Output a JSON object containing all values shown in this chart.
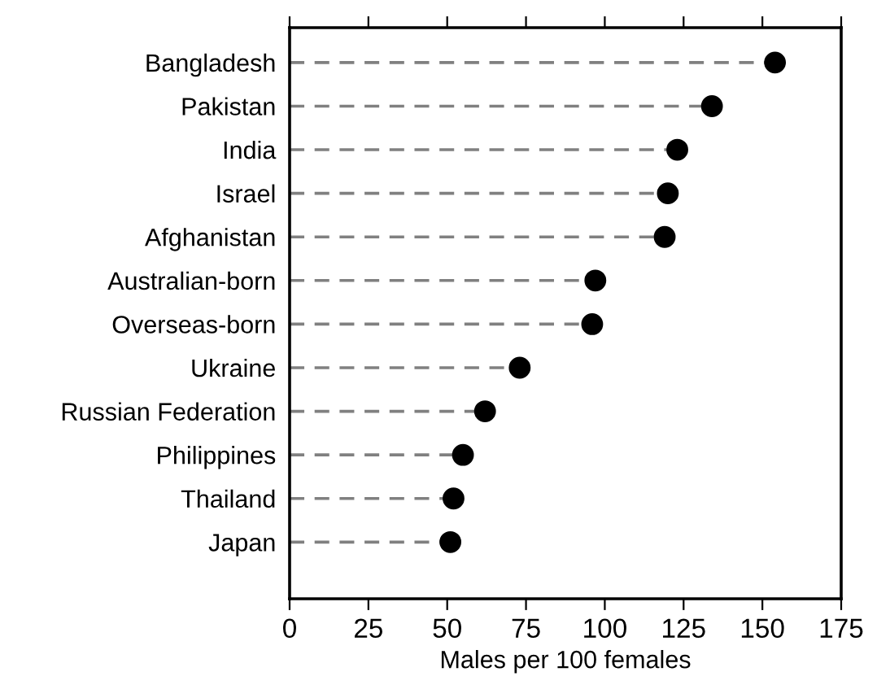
{
  "chart_data": {
    "type": "lollipop",
    "orientation": "horizontal",
    "xlabel": "Males per 100 females",
    "categories": [
      "Bangladesh",
      "Pakistan",
      "India",
      "Israel",
      "Afghanistan",
      "Australian-born",
      "Overseas-born",
      "Ukraine",
      "Russian Federation",
      "Philippines",
      "Thailand",
      "Japan"
    ],
    "series": [
      {
        "color": "#000000",
        "values": [
          154,
          134,
          123,
          120,
          119,
          97,
          96,
          73,
          62,
          55,
          52,
          51
        ]
      }
    ],
    "xlim": [
      0,
      175
    ],
    "xticks": [
      0,
      25,
      50,
      75,
      100,
      125,
      150,
      175
    ],
    "line_style": "dashed"
  }
}
